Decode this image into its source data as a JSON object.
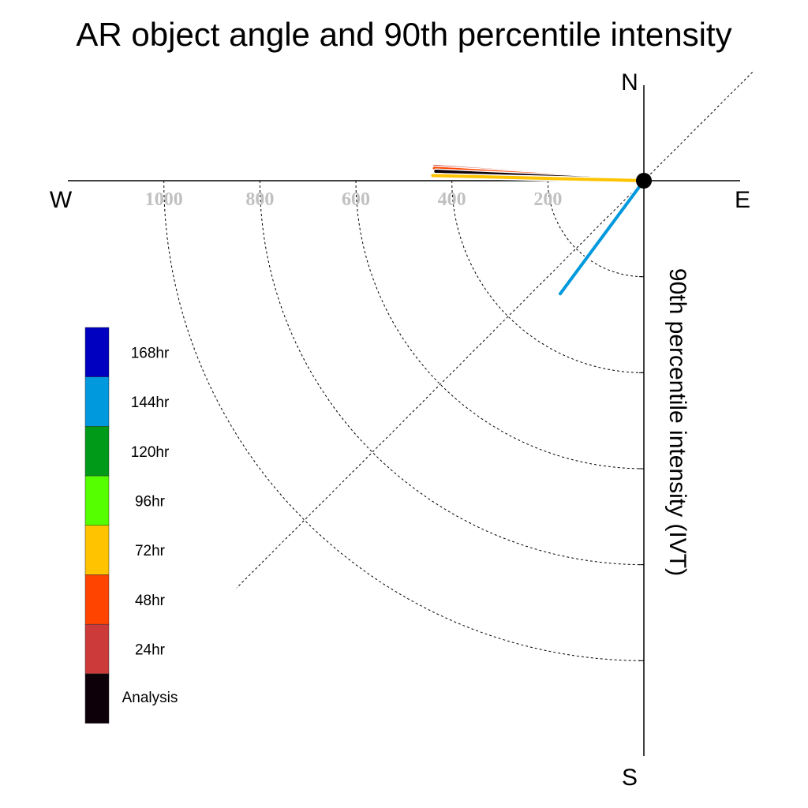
{
  "chart_data": {
    "type": "polar-line",
    "title": "AR object angle and 90th percentile intensity",
    "ylabel": "90th percentile intensity (IVT)",
    "compass": {
      "north": "N",
      "south": "S",
      "east": "E",
      "west": "W"
    },
    "radial_ticks": [
      200,
      400,
      600,
      800,
      1000
    ],
    "radial_tick_labels": [
      "200",
      "400",
      "600",
      "800",
      "1000"
    ],
    "rmax": 1200,
    "grid": true,
    "legend_placement": "lower-left",
    "legend": [
      {
        "label": "168hr",
        "color": "#0000c0"
      },
      {
        "label": "144hr",
        "color": "#0099dd"
      },
      {
        "label": "120hr",
        "color": "#009a19"
      },
      {
        "label": "96hr",
        "color": "#55ff00"
      },
      {
        "label": "72hr",
        "color": "#ffc300"
      },
      {
        "label": "48hr",
        "color": "#ff4400"
      },
      {
        "label": "24hr",
        "color": "#cc3a3a"
      },
      {
        "label": "Analysis",
        "color": "#0d0009"
      }
    ],
    "series": [
      {
        "name": "24hr",
        "color": "#cc3a3a",
        "angle_deg": 273.9,
        "intensity": 437
      },
      {
        "name": "48hr",
        "color": "#ff4400",
        "angle_deg": 273.4,
        "intensity": 437
      },
      {
        "name": "Analysis",
        "color": "#0d0009",
        "angle_deg": 272.6,
        "intensity": 434
      },
      {
        "name": "72hr",
        "color": "#ffc300",
        "angle_deg": 271.4,
        "intensity": 440
      },
      {
        "name": "144hr",
        "color": "#0099dd",
        "angle_deg": 216.5,
        "intensity": 293
      }
    ]
  }
}
